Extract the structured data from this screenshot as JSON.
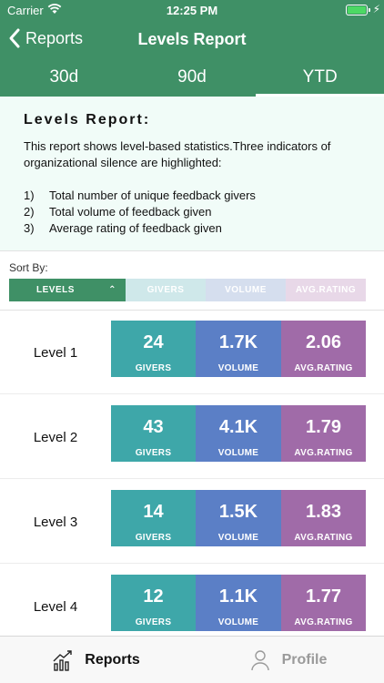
{
  "status_bar": {
    "carrier": "Carrier",
    "time": "12:25 PM"
  },
  "nav": {
    "back_label": "Reports",
    "title": "Levels Report"
  },
  "tabs": [
    {
      "label": "30d"
    },
    {
      "label": "90d"
    },
    {
      "label": "YTD",
      "active": true
    }
  ],
  "intro": {
    "heading": "Levels Report:",
    "description": "This report shows level-based statistics.Three indicators of organizational silence are highlighted:",
    "items": [
      {
        "num": "1)",
        "text": "Total number of unique feedback givers"
      },
      {
        "num": "2)",
        "text": "Total volume of feedback given"
      },
      {
        "num": "3)",
        "text": "Average rating of feedback given"
      }
    ]
  },
  "sort": {
    "label": "Sort By:",
    "options": [
      "LEVELS",
      "GIVERS",
      "VOLUME",
      "AVG.RATING"
    ],
    "selected": "LEVELS"
  },
  "rows": [
    {
      "level": "Level 1",
      "givers": "24",
      "volume": "1.7K",
      "rating": "2.06"
    },
    {
      "level": "Level 2",
      "givers": "43",
      "volume": "4.1K",
      "rating": "1.79"
    },
    {
      "level": "Level 3",
      "givers": "14",
      "volume": "1.5K",
      "rating": "1.83"
    },
    {
      "level": "Level 4",
      "givers": "12",
      "volume": "1.1K",
      "rating": "1.77"
    }
  ],
  "captions": {
    "givers": "GIVERS",
    "volume": "VOLUME",
    "rating": "AVG.RATING"
  },
  "tabbar": [
    {
      "label": "Reports",
      "icon": "chart-icon",
      "active": true
    },
    {
      "label": "Profile",
      "icon": "person-icon",
      "active": false
    }
  ],
  "colors": {
    "header": "#3f9066",
    "givers": "#3ea7a9",
    "volume": "#5b7fc6",
    "rating": "#a06ba8"
  }
}
